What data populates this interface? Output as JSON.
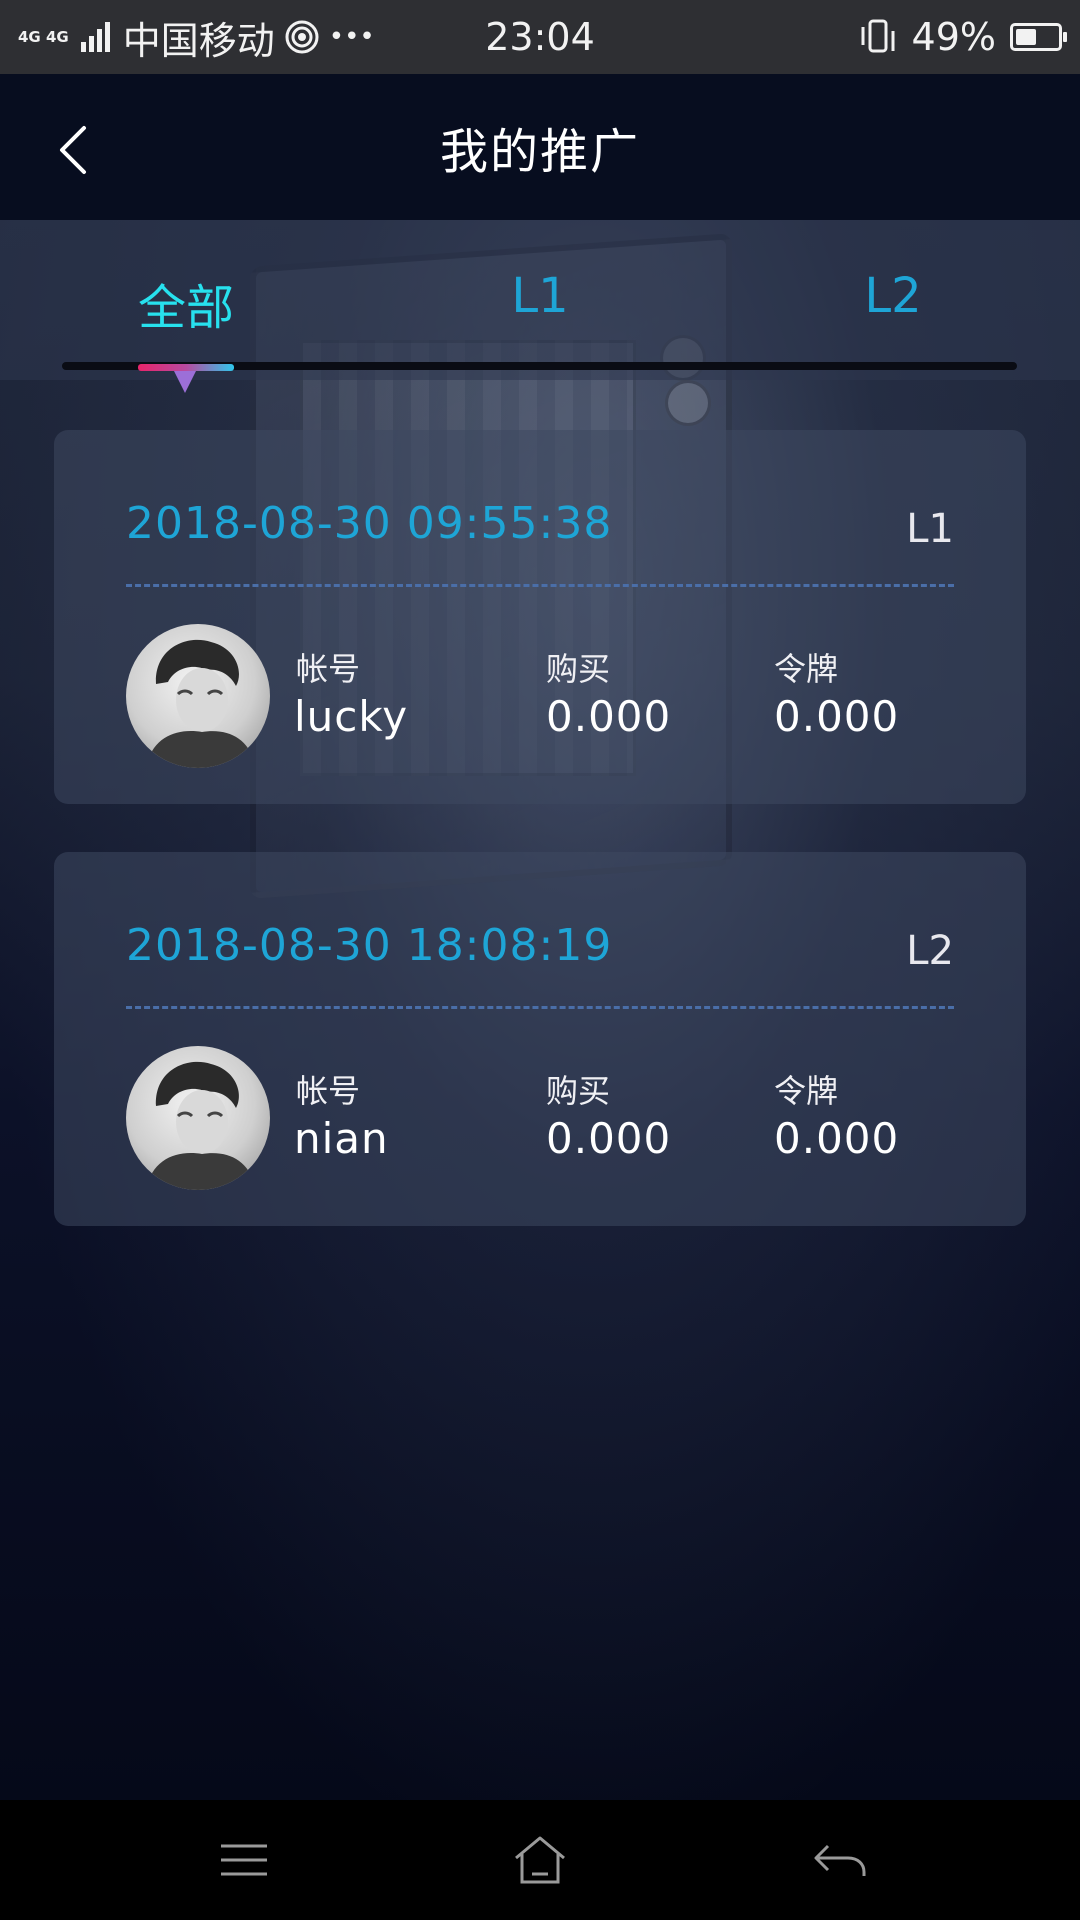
{
  "status_bar": {
    "network_badge_top": "4G 4G",
    "carrier": "中国移动",
    "more": "•••",
    "time": "23:04",
    "battery_percent": "49%",
    "battery_level": 0.49
  },
  "header": {
    "title": "我的推广",
    "back_icon": "chevron-left-icon"
  },
  "tabs": {
    "items": [
      {
        "label": "全部",
        "active": true
      },
      {
        "label": "L1",
        "active": false
      },
      {
        "label": "L2",
        "active": false
      }
    ],
    "active_color": "#27e1ee",
    "inactive_color": "#1ea5d6"
  },
  "records": [
    {
      "date": "2018-08-30 09:55:38",
      "level": "L1",
      "account_label": "帐号",
      "account": "lucky",
      "purchase_label": "购买",
      "purchase": "0.000",
      "token_label": "令牌",
      "token": "0.000"
    },
    {
      "date": "2018-08-30 18:08:19",
      "level": "L2",
      "account_label": "帐号",
      "account": "nian",
      "purchase_label": "购买",
      "purchase": "0.000",
      "token_label": "令牌",
      "token": "0.000"
    }
  ],
  "nav_bar": {
    "menu_icon": "menu-icon",
    "home_icon": "home-icon",
    "back_icon": "back-arrow-icon"
  }
}
